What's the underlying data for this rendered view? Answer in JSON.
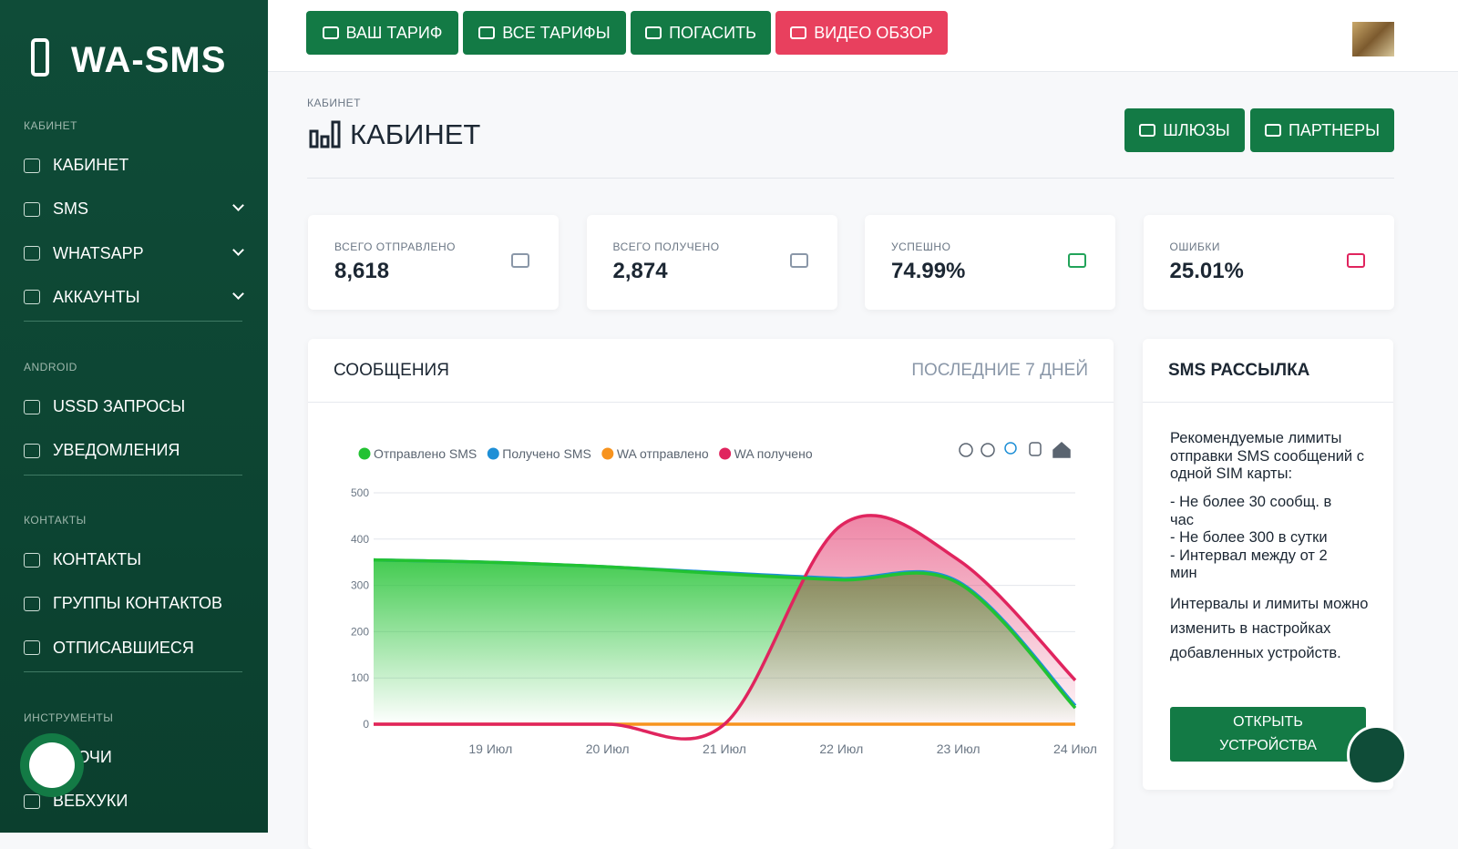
{
  "sidebar": {
    "logo": "WA-SMS",
    "sections": [
      {
        "title": "КАБИНЕТ",
        "items": [
          "КАБИНЕТ",
          "SMS",
          "WHATSAPP",
          "АККАУНТЫ"
        ]
      },
      {
        "title": "ANDROID",
        "items": [
          "USSD ЗАПРОСЫ",
          "УВЕДОМЛЕНИЯ"
        ]
      },
      {
        "title": "КОНТАКТЫ",
        "items": [
          "КОНТАКТЫ",
          "ГРУППЫ КОНТАКТОВ",
          "ОТПИСАВШИЕСЯ"
        ]
      },
      {
        "title": "ИНСТРУМЕНТЫ",
        "items": [
          "КЛЮЧИ",
          "ВЕБХУКИ"
        ]
      }
    ]
  },
  "topbar": {
    "buttons": [
      "ВАШ ТАРИФ",
      "ВСЕ ТАРИФЫ",
      "ПОГАСИТЬ",
      "ВИДЕО ОБЗОР"
    ]
  },
  "page": {
    "breadcrumb": "КАБИНЕТ",
    "title": "КАБИНЕТ",
    "buttons": [
      "ШЛЮЗЫ",
      "ПАРТНЕРЫ"
    ]
  },
  "stats": [
    {
      "label": "ВСЕГО ОТПРАВЛЕНО",
      "value": "8,618"
    },
    {
      "label": "ВСЕГО ПОЛУЧЕНО",
      "value": "2,874"
    },
    {
      "label": "УСПЕШНО",
      "value": "74.99%"
    },
    {
      "label": "ОШИБКИ",
      "value": "25.01%"
    }
  ],
  "messages_card": {
    "title": "СООБЩЕНИЯ",
    "period": "ПОСЛЕДНИЕ 7 ДНЕЙ"
  },
  "chart_data": {
    "type": "area",
    "categories": [
      null,
      "19 Июл",
      "20 Июл",
      "21 Июл",
      "22 Июл",
      "23 Июл",
      "24 Июл"
    ],
    "series": [
      {
        "name": "Отправлено SMS",
        "color": "#22c232",
        "values": [
          355,
          350,
          340,
          325,
          312,
          305,
          35
        ]
      },
      {
        "name": "Получено SMS",
        "color": "#1e8fd6",
        "values": [
          355,
          350,
          340,
          327,
          315,
          308,
          40
        ]
      },
      {
        "name": "WA отправлено",
        "color": "#f7931e",
        "values": [
          0,
          0,
          0,
          0,
          0,
          0,
          0
        ]
      },
      {
        "name": "WA получено",
        "color": "#e0245e",
        "values": [
          0,
          0,
          0,
          0,
          430,
          355,
          95
        ]
      }
    ],
    "ylim": [
      0,
      500
    ],
    "yticks": [
      0,
      100,
      200,
      300,
      400,
      500
    ],
    "grid": true
  },
  "sms_card": {
    "title": "SMS РАССЫЛКА",
    "intro": "Рекомендуемые лимиты отправки SMS сообщений с одной SIM карты:",
    "limits": [
      "- Не более 30 сообщ. в час",
      "- Не более 300 в сутки",
      "- Интервал между от 2 мин"
    ],
    "note": "Интервалы и лимиты можно изменить в настройках добавленных устройств.",
    "button": "ОТКРЫТЬ УСТРОЙСТВА"
  }
}
